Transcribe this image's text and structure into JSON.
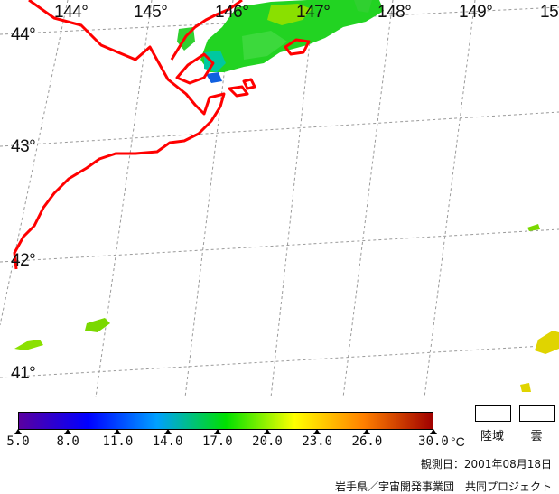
{
  "map": {
    "longitude_labels": [
      "144°",
      "145°",
      "146°",
      "147°",
      "148°",
      "149°",
      "15"
    ],
    "latitude_labels": [
      "44°",
      "43°",
      "42°",
      "41°"
    ],
    "coastline_color": "#ff0000",
    "grid_color": "#9a9a9a"
  },
  "colorbar": {
    "ticks": [
      "5.0",
      "8.0",
      "11.0",
      "14.0",
      "17.0",
      "20.0",
      "23.0",
      "26.0",
      "30.0"
    ],
    "unit": "°C",
    "min": 5.0,
    "max": 30.0,
    "colors": [
      "#5a00a0",
      "#0000ff",
      "#00a0ff",
      "#00e000",
      "#ffff00",
      "#ff8000",
      "#a00000"
    ]
  },
  "legend": {
    "land_label": "陸域",
    "cloud_label": "雲"
  },
  "footer": {
    "observation_date": "観測日：2001年08月18日",
    "credit": "岩手県／宇宙開発事業団　共同プロジェクト"
  }
}
